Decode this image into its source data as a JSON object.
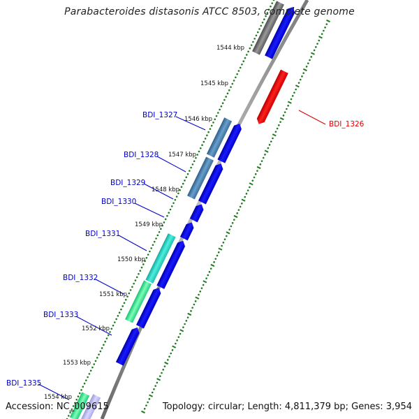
{
  "title": "Parabacteroides distasonis ATCC 8503, complete genome",
  "footer": {
    "accession": "Accession: NC_009615",
    "topology": "Topology: circular; Length: 4,811,379 bp; Genes: 3,954"
  },
  "colors": {
    "backbone": "#8c8c8c",
    "tick": "#1e7a1e",
    "gene_label": "#0000cc",
    "gene_label_reverse": "#dd0000"
  },
  "kbp_labels": [
    "1544 kbp",
    "1545 kbp",
    "1546 kbp",
    "1547 kbp",
    "1548 kbp",
    "1549 kbp",
    "1550 kbp",
    "1551 kbp",
    "1552 kbp",
    "1553 kbp",
    "1554 kbp"
  ],
  "gene_labels": [
    "BDI_1326",
    "BDI_1327",
    "BDI_1328",
    "BDI_1329",
    "BDI_1330",
    "BDI_1331",
    "BDI_1332",
    "BDI_1333",
    "BDI_1335"
  ]
}
